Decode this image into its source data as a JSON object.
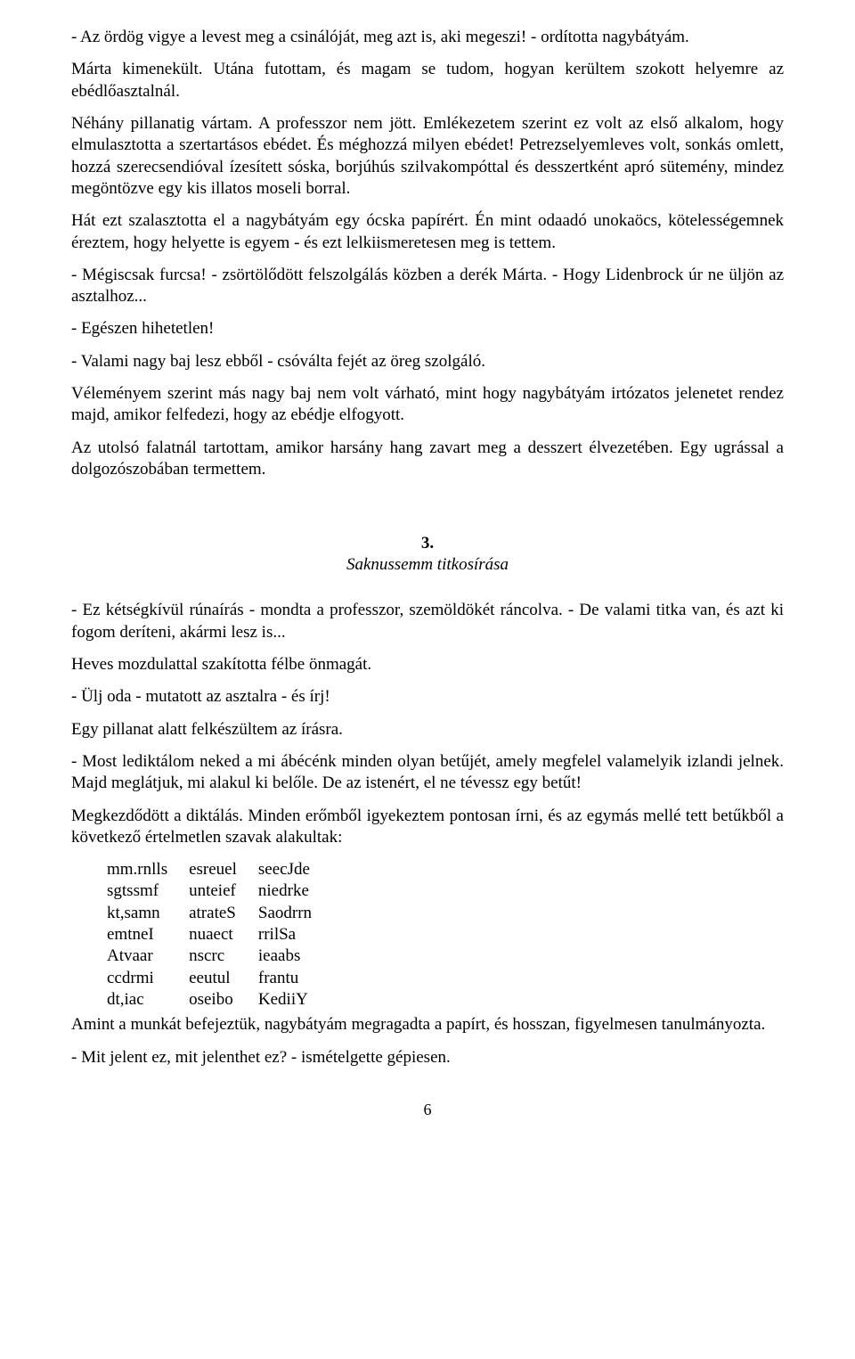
{
  "paragraphs": {
    "p1": "- Az ördög vigye a levest meg a csinálóját, meg azt is, aki megeszi! - ordította nagybátyám.",
    "p2": "Márta kimenekült. Utána futottam, és magam se tudom, hogyan kerültem szokott helyemre az ebédlőasztalnál.",
    "p3": "Néhány pillanatig vártam. A professzor nem jött. Emlékezetem szerint ez volt az első alkalom, hogy elmulasztotta a szertartásos ebédet. És méghozzá milyen ebédet! Petrezselyemleves volt, sonkás omlett, hozzá szerecsendióval ízesített sóska, borjúhús szilvakompóttal és desszertként apró sütemény, mindez megöntözve egy kis illatos moseli borral.",
    "p4": "Hát ezt szalasztotta el a nagybátyám egy ócska papírért. Én mint odaadó unokaöcs, kötelességemnek éreztem, hogy helyette is egyem - és ezt lelkiismeretesen meg is tettem.",
    "p5": "- Mégiscsak furcsa! - zsörtölődött felszolgálás közben a derék Márta. - Hogy Lidenbrock úr ne üljön az asztalhoz...",
    "p6": "- Egészen hihetetlen!",
    "p7": "- Valami nagy baj lesz ebből - csóválta fejét az öreg szolgáló.",
    "p8": "Véleményem szerint más nagy baj nem volt várható, mint hogy nagybátyám irtózatos jelenetet rendez majd, amikor felfedezi, hogy az ebédje elfogyott.",
    "p9": "Az utolsó falatnál tartottam, amikor harsány hang zavart meg a desszert élvezetében. Egy ugrással a dolgozószobában termettem.",
    "p10": "- Ez kétségkívül rúnaírás - mondta a professzor, szemöldökét ráncolva. - De valami titka van, és azt ki fogom deríteni, akármi lesz is...",
    "p11": "Heves mozdulattal szakította félbe önmagát.",
    "p12": "- Ülj oda - mutatott az asztalra - és írj!",
    "p13": "Egy pillanat alatt felkészültem az írásra.",
    "p14": "- Most lediktálom neked a mi ábécénk minden olyan betűjét, amely megfelel valamelyik izlandi jelnek. Majd meglátjuk, mi alakul ki belőle. De az istenért, el ne tévessz egy betűt!",
    "p15": "Megkezdődött a diktálás. Minden erőmből igyekeztem pontosan írni, és az egymás mellé tett betűkből a következő értelmetlen szavak alakultak:",
    "p16": "Amint a munkát befejeztük, nagybátyám megragadta a papírt, és hosszan, figyelmesen tanulmányozta.",
    "p17": "- Mit jelent ez, mit jelenthet ez? - ismételgette gépiesen."
  },
  "chapter": {
    "number": "3.",
    "title": "Saknussemm titkosírása"
  },
  "code": {
    "rows": [
      [
        "mm.rnlls",
        "esreuel",
        "seecJde"
      ],
      [
        "sgtssmf",
        "unteief",
        "niedrke"
      ],
      [
        "kt,samn",
        "atrateS",
        "Saodrrn"
      ],
      [
        "emtneI",
        "nuaect",
        "rrilSa"
      ],
      [
        "Atvaar",
        "nscrc",
        "ieaabs"
      ],
      [
        "ccdrmi",
        "eeutul",
        "frantu"
      ],
      [
        "dt,iac",
        "oseibo",
        "KediiY"
      ]
    ]
  },
  "pageNumber": "6",
  "style": {
    "fontFamily": "Times New Roman",
    "fontSize": 19,
    "textColor": "#000000",
    "backgroundColor": "#ffffff",
    "pageWidth": 960,
    "pageHeight": 1525
  }
}
